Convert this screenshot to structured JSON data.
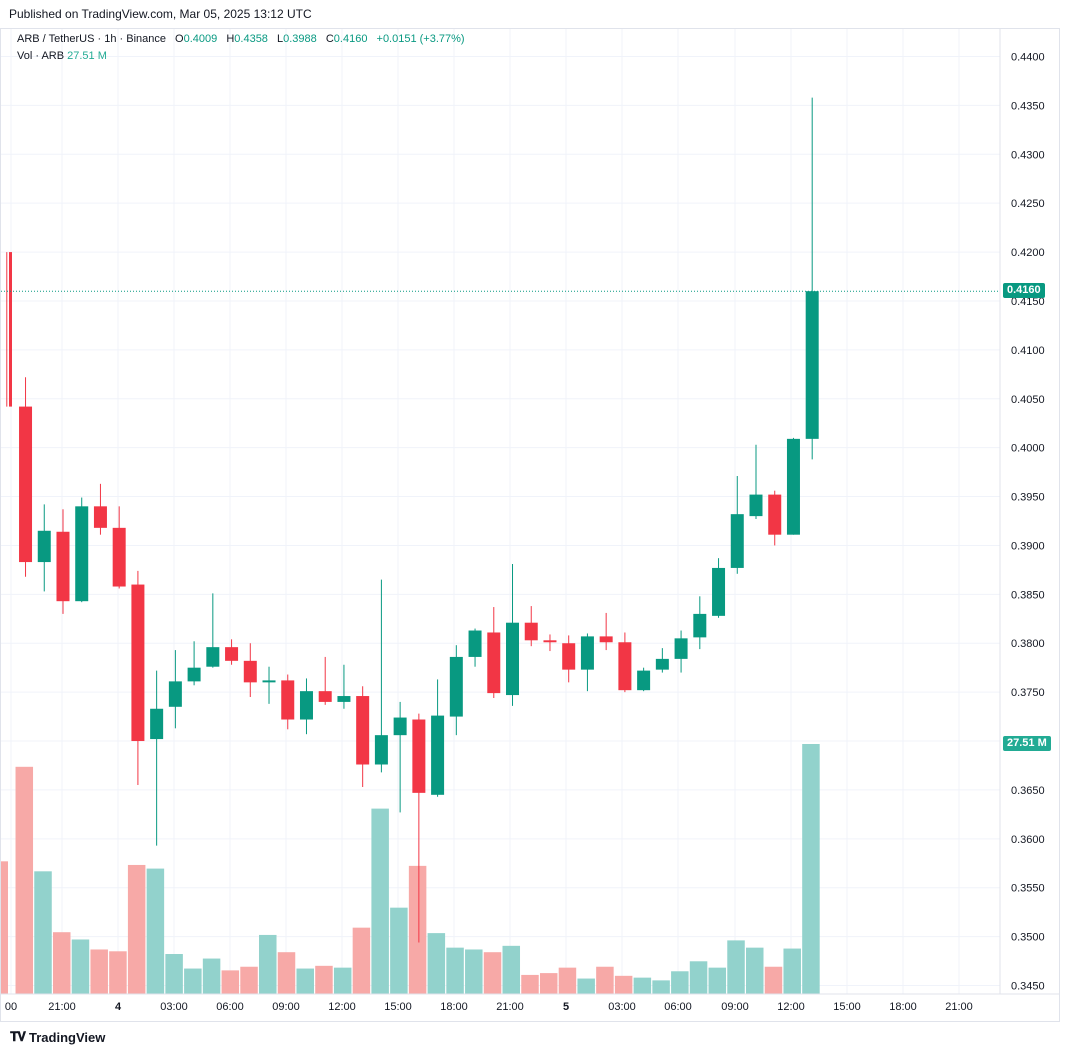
{
  "header": {
    "published": "Published on TradingView.com, Mar 05, 2025 13:12 UTC"
  },
  "legend": {
    "symbol": "ARB / TetherUS · 1h · Binance",
    "o_label": "O",
    "o_value": "0.4009",
    "h_label": "H",
    "h_value": "0.4358",
    "l_label": "L",
    "l_value": "0.3988",
    "c_label": "C",
    "c_value": "0.4160",
    "change": "+0.0151 (+3.77%)",
    "vol_label": "Vol · ARB",
    "vol_value": "27.51 M"
  },
  "tags": {
    "last_price": "0.4160",
    "last_volume": "27.51 M"
  },
  "footer": {
    "brand": "TradingView"
  },
  "colors": {
    "up": "#089981",
    "down": "#f23645",
    "vol_up": "#92d2cc",
    "vol_down": "#f7a9a7",
    "grid": "#f0f3fa",
    "text": "#131722"
  },
  "chart_data": {
    "type": "candlestick",
    "ylim": [
      0.345,
      0.4405
    ],
    "y_ticks": [
      "0.4400",
      "0.4350",
      "0.4300",
      "0.4250",
      "0.4200",
      "0.4150",
      "0.4100",
      "0.4050",
      "0.4000",
      "0.3950",
      "0.3900",
      "0.3850",
      "0.3800",
      "0.3750",
      "0.3700",
      "0.3650",
      "0.3600",
      "0.3550",
      "0.3500",
      "0.3450"
    ],
    "x_labels": [
      "00",
      "21:00",
      "4",
      "03:00",
      "06:00",
      "09:00",
      "12:00",
      "15:00",
      "18:00",
      "21:00",
      "5",
      "03:00",
      "06:00",
      "09:00",
      "12:00",
      "15:00",
      "18:00",
      "21:00"
    ],
    "candles": [
      {
        "o": 0.42,
        "h": 0.42,
        "l": 0.4042,
        "c": 0.4042
      },
      {
        "o": 0.4042,
        "h": 0.4072,
        "l": 0.3868,
        "c": 0.3883
      },
      {
        "o": 0.3883,
        "h": 0.3942,
        "l": 0.3853,
        "c": 0.3915
      },
      {
        "o": 0.3914,
        "h": 0.3937,
        "l": 0.383,
        "c": 0.3843
      },
      {
        "o": 0.3843,
        "h": 0.3949,
        "l": 0.3842,
        "c": 0.394
      },
      {
        "o": 0.394,
        "h": 0.3963,
        "l": 0.3911,
        "c": 0.3918
      },
      {
        "o": 0.3918,
        "h": 0.394,
        "l": 0.3856,
        "c": 0.3858
      },
      {
        "o": 0.386,
        "h": 0.3874,
        "l": 0.3655,
        "c": 0.37
      },
      {
        "o": 0.3702,
        "h": 0.3772,
        "l": 0.3593,
        "c": 0.3733
      },
      {
        "o": 0.3735,
        "h": 0.3793,
        "l": 0.3713,
        "c": 0.3761
      },
      {
        "o": 0.3761,
        "h": 0.3802,
        "l": 0.3757,
        "c": 0.3775
      },
      {
        "o": 0.3776,
        "h": 0.3851,
        "l": 0.3775,
        "c": 0.3796
      },
      {
        "o": 0.3796,
        "h": 0.3804,
        "l": 0.3778,
        "c": 0.3782
      },
      {
        "o": 0.3782,
        "h": 0.38,
        "l": 0.3745,
        "c": 0.376
      },
      {
        "o": 0.376,
        "h": 0.3776,
        "l": 0.3738,
        "c": 0.3762
      },
      {
        "o": 0.3762,
        "h": 0.3768,
        "l": 0.3712,
        "c": 0.3722
      },
      {
        "o": 0.3722,
        "h": 0.3764,
        "l": 0.3707,
        "c": 0.3751
      },
      {
        "o": 0.3751,
        "h": 0.3786,
        "l": 0.3737,
        "c": 0.374
      },
      {
        "o": 0.374,
        "h": 0.3778,
        "l": 0.3733,
        "c": 0.3746
      },
      {
        "o": 0.3746,
        "h": 0.3756,
        "l": 0.3653,
        "c": 0.3676
      },
      {
        "o": 0.3676,
        "h": 0.3865,
        "l": 0.3668,
        "c": 0.3706
      },
      {
        "o": 0.3706,
        "h": 0.374,
        "l": 0.3627,
        "c": 0.3724
      },
      {
        "o": 0.3722,
        "h": 0.3728,
        "l": 0.3494,
        "c": 0.3647
      },
      {
        "o": 0.3645,
        "h": 0.3763,
        "l": 0.3643,
        "c": 0.3726
      },
      {
        "o": 0.3725,
        "h": 0.3798,
        "l": 0.3706,
        "c": 0.3786
      },
      {
        "o": 0.3786,
        "h": 0.3815,
        "l": 0.3776,
        "c": 0.3813
      },
      {
        "o": 0.3811,
        "h": 0.3837,
        "l": 0.3744,
        "c": 0.3749
      },
      {
        "o": 0.3747,
        "h": 0.3881,
        "l": 0.3736,
        "c": 0.3821
      },
      {
        "o": 0.3821,
        "h": 0.3838,
        "l": 0.3797,
        "c": 0.3803
      },
      {
        "o": 0.3803,
        "h": 0.3809,
        "l": 0.3792,
        "c": 0.3801
      },
      {
        "o": 0.38,
        "h": 0.3808,
        "l": 0.376,
        "c": 0.3773
      },
      {
        "o": 0.3773,
        "h": 0.381,
        "l": 0.3751,
        "c": 0.3807
      },
      {
        "o": 0.3807,
        "h": 0.3831,
        "l": 0.3793,
        "c": 0.3801
      },
      {
        "o": 0.3801,
        "h": 0.3811,
        "l": 0.375,
        "c": 0.3752
      },
      {
        "o": 0.3752,
        "h": 0.3775,
        "l": 0.3751,
        "c": 0.3772
      },
      {
        "o": 0.3773,
        "h": 0.3795,
        "l": 0.377,
        "c": 0.3784
      },
      {
        "o": 0.3784,
        "h": 0.3813,
        "l": 0.377,
        "c": 0.3805
      },
      {
        "o": 0.3806,
        "h": 0.3848,
        "l": 0.3794,
        "c": 0.383
      },
      {
        "o": 0.3828,
        "h": 0.3887,
        "l": 0.3826,
        "c": 0.3877
      },
      {
        "o": 0.3877,
        "h": 0.3971,
        "l": 0.3871,
        "c": 0.3932
      },
      {
        "o": 0.393,
        "h": 0.4003,
        "l": 0.3927,
        "c": 0.3952
      },
      {
        "o": 0.3952,
        "h": 0.3956,
        "l": 0.39,
        "c": 0.3911
      },
      {
        "o": 0.3911,
        "h": 0.401,
        "l": 0.3911,
        "c": 0.4009
      },
      {
        "o": 0.4009,
        "h": 0.4358,
        "l": 0.3988,
        "c": 0.416
      }
    ],
    "volume_labels_note": "",
    "volume": [
      14.6,
      25.0,
      13.5,
      6.8,
      6.0,
      4.9,
      4.7,
      14.2,
      13.8,
      4.4,
      2.8,
      3.9,
      2.6,
      3.0,
      6.5,
      4.6,
      2.8,
      3.1,
      2.9,
      7.3,
      20.4,
      9.5,
      14.1,
      6.7,
      5.1,
      4.9,
      4.6,
      5.3,
      2.1,
      2.3,
      2.9,
      1.7,
      3.0,
      2.0,
      1.8,
      1.5,
      2.5,
      3.6,
      2.9,
      5.9,
      5.1,
      3.0,
      5.0,
      27.51
    ],
    "volume_max": 27.51,
    "last_price": 0.416
  }
}
